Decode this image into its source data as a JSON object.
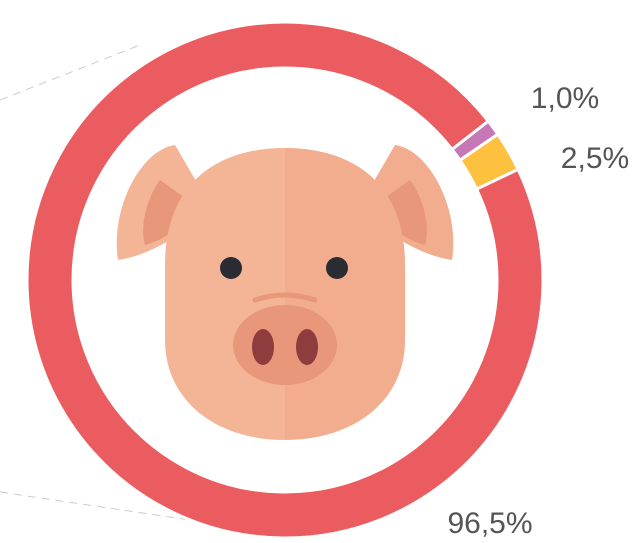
{
  "chart_data": {
    "type": "pie",
    "categories": [
      null,
      null,
      null
    ],
    "values": [
      96.5,
      1.0,
      2.5
    ],
    "value_labels": [
      "96,5%",
      "1,0%",
      "2,5%"
    ],
    "colors": [
      "#eb5c60",
      "#c678b6",
      "#fdc13f"
    ]
  }
}
